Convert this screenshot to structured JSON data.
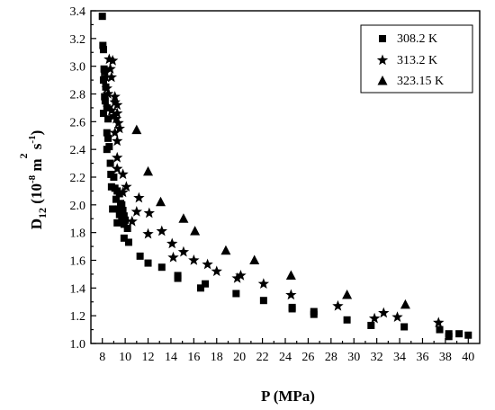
{
  "chart_data": {
    "type": "scatter",
    "xlabel": "P (MPa)",
    "ylabel": {
      "main": "D",
      "sub": "12",
      "paren_open": " (10",
      "exp1": "-8",
      "m": " m",
      "exp2": "2",
      "s": " s",
      "exp3": "-1",
      "paren_close": ")"
    },
    "xlim": [
      7,
      41
    ],
    "ylim": [
      1.0,
      3.4
    ],
    "xticks": [
      8,
      10,
      12,
      14,
      16,
      18,
      20,
      22,
      24,
      26,
      28,
      30,
      32,
      34,
      36,
      38,
      40
    ],
    "yticks": [
      1.0,
      1.2,
      1.4,
      1.6,
      1.8,
      2.0,
      2.2,
      2.4,
      2.6,
      2.8,
      3.0,
      3.2,
      3.4
    ],
    "grid": false,
    "legend_position": "top-right",
    "series": [
      {
        "name": "308.2 K",
        "marker": "square",
        "points": [
          [
            8.0,
            3.36
          ],
          [
            8.05,
            3.15
          ],
          [
            8.1,
            3.12
          ],
          [
            8.15,
            2.98
          ],
          [
            8.2,
            2.96
          ],
          [
            8.1,
            2.9
          ],
          [
            8.3,
            2.85
          ],
          [
            8.2,
            2.78
          ],
          [
            8.25,
            2.75
          ],
          [
            8.4,
            2.7
          ],
          [
            8.1,
            2.66
          ],
          [
            8.5,
            2.62
          ],
          [
            8.4,
            2.52
          ],
          [
            8.5,
            2.48
          ],
          [
            8.6,
            2.42
          ],
          [
            8.4,
            2.4
          ],
          [
            8.7,
            2.3
          ],
          [
            8.75,
            2.22
          ],
          [
            9.0,
            2.2
          ],
          [
            8.8,
            2.13
          ],
          [
            9.1,
            2.12
          ],
          [
            9.3,
            2.1
          ],
          [
            9.5,
            2.08
          ],
          [
            9.2,
            2.04
          ],
          [
            9.6,
            2.01
          ],
          [
            9.7,
            2.0
          ],
          [
            8.9,
            1.97
          ],
          [
            9.4,
            1.97
          ],
          [
            9.8,
            1.96
          ],
          [
            9.5,
            1.93
          ],
          [
            9.9,
            1.92
          ],
          [
            9.7,
            1.9
          ],
          [
            10.0,
            1.89
          ],
          [
            9.3,
            1.87
          ],
          [
            9.9,
            1.86
          ],
          [
            10.2,
            1.83
          ],
          [
            9.9,
            1.76
          ],
          [
            10.3,
            1.73
          ],
          [
            11.3,
            1.63
          ],
          [
            12.0,
            1.58
          ],
          [
            13.2,
            1.55
          ],
          [
            14.6,
            1.49
          ],
          [
            14.6,
            1.47
          ],
          [
            16.6,
            1.4
          ],
          [
            17.0,
            1.43
          ],
          [
            19.7,
            1.36
          ],
          [
            22.1,
            1.31
          ],
          [
            24.6,
            1.26
          ],
          [
            24.6,
            1.25
          ],
          [
            26.5,
            1.23
          ],
          [
            26.5,
            1.21
          ],
          [
            29.4,
            1.17
          ],
          [
            31.5,
            1.13
          ],
          [
            34.4,
            1.12
          ],
          [
            37.5,
            1.1
          ],
          [
            38.3,
            1.07
          ],
          [
            38.3,
            1.05
          ],
          [
            39.2,
            1.07
          ],
          [
            40.0,
            1.06
          ]
        ]
      },
      {
        "name": "313.2 K",
        "marker": "star",
        "points": [
          [
            8.3,
            2.92
          ],
          [
            8.6,
            3.05
          ],
          [
            8.9,
            3.04
          ],
          [
            8.7,
            2.98
          ],
          [
            8.8,
            2.92
          ],
          [
            8.4,
            2.84
          ],
          [
            8.5,
            2.8
          ],
          [
            9.1,
            2.78
          ],
          [
            9.1,
            2.74
          ],
          [
            9.3,
            2.72
          ],
          [
            8.5,
            2.7
          ],
          [
            8.8,
            2.68
          ],
          [
            9.3,
            2.66
          ],
          [
            9.0,
            2.64
          ],
          [
            9.2,
            2.62
          ],
          [
            9.4,
            2.59
          ],
          [
            9.5,
            2.55
          ],
          [
            9.1,
            2.52
          ],
          [
            9.3,
            2.46
          ],
          [
            9.3,
            2.34
          ],
          [
            9.3,
            2.26
          ],
          [
            9.8,
            2.22
          ],
          [
            10.1,
            2.13
          ],
          [
            9.8,
            2.09
          ],
          [
            11.2,
            2.05
          ],
          [
            11.0,
            1.95
          ],
          [
            12.1,
            1.94
          ],
          [
            10.6,
            1.88
          ],
          [
            12.0,
            1.79
          ],
          [
            13.2,
            1.81
          ],
          [
            14.1,
            1.72
          ],
          [
            14.2,
            1.62
          ],
          [
            15.1,
            1.66
          ],
          [
            16.0,
            1.6
          ],
          [
            17.2,
            1.57
          ],
          [
            18.0,
            1.52
          ],
          [
            19.8,
            1.47
          ],
          [
            20.1,
            1.49
          ],
          [
            22.1,
            1.43
          ],
          [
            24.5,
            1.35
          ],
          [
            28.6,
            1.27
          ],
          [
            31.8,
            1.18
          ],
          [
            32.6,
            1.22
          ],
          [
            33.8,
            1.19
          ],
          [
            37.4,
            1.15
          ]
        ]
      },
      {
        "name": "323.15 K",
        "marker": "triangle",
        "points": [
          [
            11.0,
            2.54
          ],
          [
            12.0,
            2.24
          ],
          [
            13.1,
            2.02
          ],
          [
            15.1,
            1.9
          ],
          [
            16.1,
            1.81
          ],
          [
            18.8,
            1.67
          ],
          [
            21.3,
            1.6
          ],
          [
            24.5,
            1.49
          ],
          [
            29.4,
            1.35
          ],
          [
            34.5,
            1.28
          ]
        ]
      }
    ]
  }
}
